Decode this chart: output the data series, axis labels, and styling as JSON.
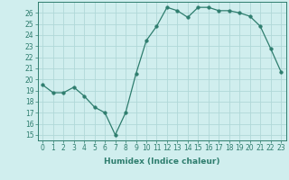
{
  "x": [
    0,
    1,
    2,
    3,
    4,
    5,
    6,
    7,
    8,
    9,
    10,
    11,
    12,
    13,
    14,
    15,
    16,
    17,
    18,
    19,
    20,
    21,
    22,
    23
  ],
  "y": [
    19.5,
    18.8,
    18.8,
    19.3,
    18.5,
    17.5,
    17.0,
    15.0,
    17.0,
    20.5,
    23.5,
    24.8,
    26.5,
    26.2,
    25.6,
    26.5,
    26.5,
    26.2,
    26.2,
    26.0,
    25.7,
    24.8,
    22.8,
    20.7
  ],
  "xlabel": "Humidex (Indice chaleur)",
  "ylim": [
    14.5,
    27.0
  ],
  "xlim": [
    -0.5,
    23.5
  ],
  "yticks": [
    15,
    16,
    17,
    18,
    19,
    20,
    21,
    22,
    23,
    24,
    25,
    26
  ],
  "xticks": [
    0,
    1,
    2,
    3,
    4,
    5,
    6,
    7,
    8,
    9,
    10,
    11,
    12,
    13,
    14,
    15,
    16,
    17,
    18,
    19,
    20,
    21,
    22,
    23
  ],
  "line_color": "#2e7d6e",
  "marker_size": 2.5,
  "bg_color": "#d0eeee",
  "grid_color": "#b0d8d8",
  "tick_label_fontsize": 5.5,
  "xlabel_fontsize": 6.5
}
